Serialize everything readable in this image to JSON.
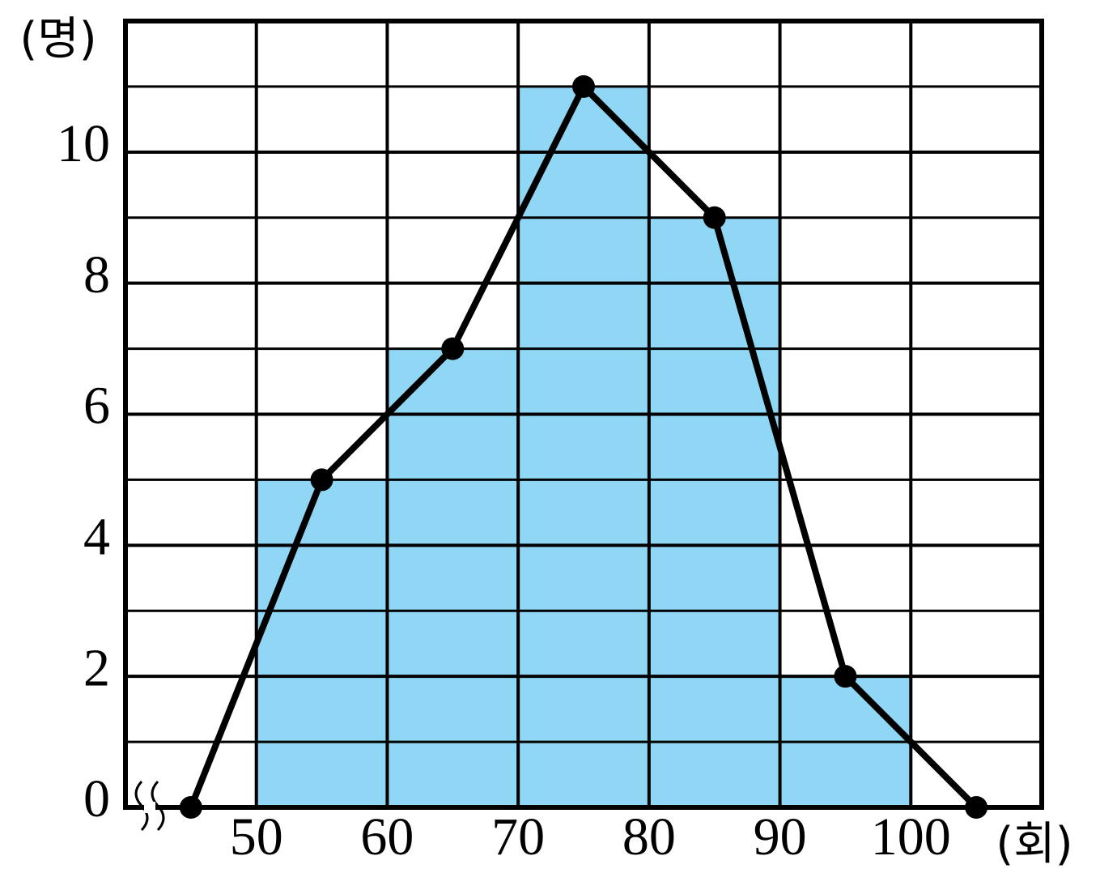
{
  "chart_data": {
    "type": "histogram",
    "y_label": "(명)",
    "x_label": "(회)",
    "bins": [
      50,
      60,
      70,
      80,
      90,
      100
    ],
    "counts": [
      5,
      7,
      11,
      9,
      2
    ],
    "color": "#8fd7f5",
    "polygon": {
      "x": [
        45,
        55,
        65,
        75,
        85,
        95,
        105
      ],
      "values": [
        0,
        5,
        7,
        11,
        9,
        2,
        0
      ],
      "color": "#000000"
    },
    "xlim": [
      40,
      110
    ],
    "xticks": [
      50,
      60,
      70,
      80,
      90,
      100
    ],
    "ylim": [
      0,
      12
    ],
    "yticks": [
      0,
      2,
      4,
      6,
      8,
      10
    ],
    "minor_yticks": [
      1,
      3,
      5,
      7,
      9,
      11
    ],
    "grid": true,
    "axis_break": true
  }
}
